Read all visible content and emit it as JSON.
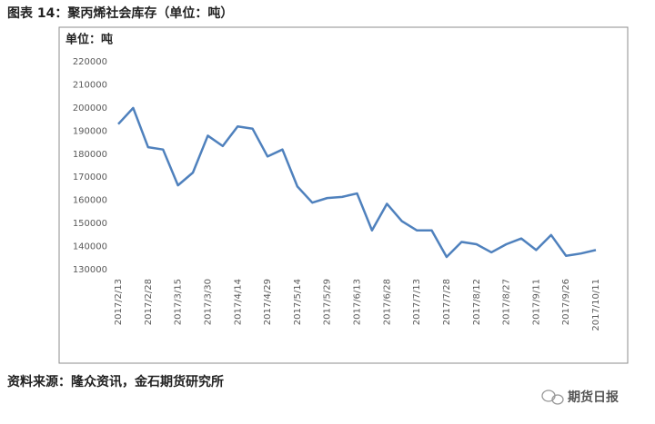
{
  "caption": "图表 14：聚丙烯社会库存（单位：吨）",
  "source": "资料来源：隆众资讯，金石期货研究所",
  "watermark": "期货日报",
  "chart_data": {
    "type": "line",
    "y_label": "单位：吨",
    "categories": [
      "2017/2/13",
      null,
      "2017/2/28",
      null,
      "2017/3/15",
      null,
      "2017/3/30",
      null,
      "2017/4/14",
      null,
      "2017/4/29",
      null,
      "2017/5/14",
      null,
      "2017/5/29",
      null,
      "2017/6/13",
      null,
      "2017/6/28",
      null,
      "2017/7/13",
      null,
      "2017/7/28",
      null,
      "2017/8/12",
      null,
      "2017/8/27",
      null,
      "2017/9/11",
      null,
      "2017/9/26",
      null,
      "2017/10/11"
    ],
    "values": [
      193000,
      200000,
      183000,
      182000,
      166500,
      172000,
      188000,
      183500,
      192000,
      191000,
      179000,
      182000,
      166000,
      159000,
      161000,
      161500,
      163000,
      147000,
      158500,
      151000,
      147000,
      147000,
      135500,
      142000,
      141000,
      137500,
      141000,
      143500,
      138500,
      145000,
      136000,
      137000,
      138500
    ],
    "color": "#4f81bd",
    "ylim": [
      130000,
      220000
    ],
    "yticks": [
      130000,
      140000,
      150000,
      160000,
      170000,
      180000,
      190000,
      200000,
      210000,
      220000
    ],
    "grid": false
  }
}
